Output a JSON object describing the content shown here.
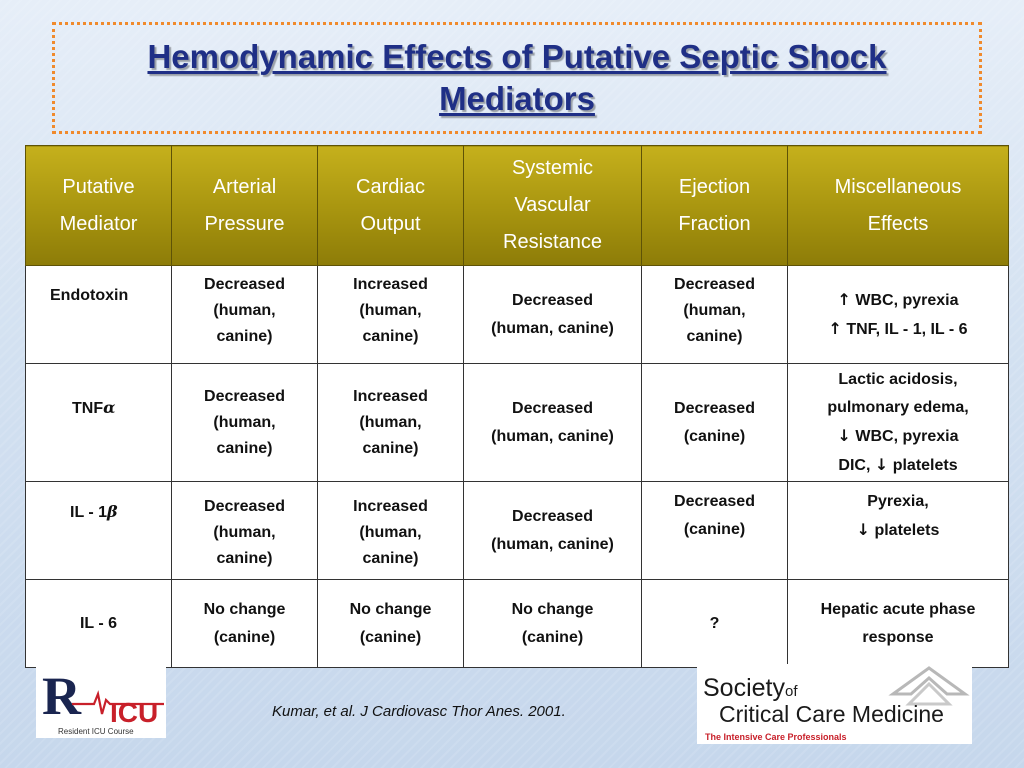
{
  "slide": {
    "title": "Hemodynamic Effects of Putative Septic Shock Mediators",
    "citation": "Kumar, et al. J Cardiovasc Thor Anes. 2001."
  },
  "table": {
    "headers": [
      [
        "Putative",
        "Mediator"
      ],
      [
        "Arterial",
        "Pressure"
      ],
      [
        "Cardiac",
        "Output"
      ],
      [
        "Systemic",
        "Vascular",
        "Resistance"
      ],
      [
        "Ejection",
        "Fraction"
      ],
      [
        "Miscellaneous",
        "Effects"
      ]
    ],
    "rows": [
      {
        "mediator": "Endotoxin",
        "arterial_pressure": [
          "Decreased",
          "(human,",
          "canine)"
        ],
        "cardiac_output": [
          "Increased",
          "(human,",
          "canine)"
        ],
        "svr": [
          "Decreased",
          "(human, canine)"
        ],
        "ejection_fraction": [
          "Decreased",
          "(human,",
          "canine)"
        ],
        "misc": [
          {
            "arrow": "↑",
            "text": " WBC, pyrexia"
          },
          {
            "arrow": "↑",
            "text": " TNF, IL - 1, IL - 6"
          }
        ]
      },
      {
        "mediator": "TNF",
        "mediator_greek": "α",
        "arterial_pressure": [
          "Decreased",
          "(human,",
          "canine)"
        ],
        "cardiac_output": [
          "Increased",
          "(human,",
          "canine)"
        ],
        "svr": [
          "Decreased",
          "(human, canine)"
        ],
        "ejection_fraction": [
          "Decreased",
          "(canine)"
        ],
        "misc": [
          {
            "arrow": "",
            "text": "Lactic acidosis,"
          },
          {
            "arrow": "",
            "text": "pulmonary edema,"
          },
          {
            "arrow": "↓",
            "text": " WBC, pyrexia"
          },
          {
            "arrow": "",
            "text": "DIC, ",
            "arrow_after": "↓",
            "text_after": " platelets"
          }
        ]
      },
      {
        "mediator": "IL - 1",
        "mediator_greek": "β",
        "arterial_pressure": [
          "Decreased",
          "(human,",
          "canine)"
        ],
        "cardiac_output": [
          "Increased",
          "(human,",
          "canine)"
        ],
        "svr": [
          "Decreased",
          "(human, canine)"
        ],
        "ejection_fraction": [
          "Decreased",
          "(canine)"
        ],
        "misc": [
          {
            "arrow": "",
            "text": "Pyrexia,"
          },
          {
            "arrow": "↓",
            "text": " platelets"
          }
        ]
      },
      {
        "mediator": "IL - 6",
        "arterial_pressure": [
          "No change",
          "(canine)"
        ],
        "cardiac_output": [
          "No change",
          "(canine)"
        ],
        "svr": [
          "No change",
          "(canine)"
        ],
        "ejection_fraction": [
          "?"
        ],
        "misc": [
          {
            "arrow": "",
            "text": "Hepatic acute phase"
          },
          {
            "arrow": "",
            "text": "response"
          }
        ]
      }
    ]
  },
  "logos": {
    "left": {
      "letters": "RICU",
      "caption": "Resident ICU Course"
    },
    "right": {
      "line1": "Society",
      "line1_small": "of",
      "line2": "Critical Care Medicine",
      "tagline": "The Intensive Care Professionals"
    }
  },
  "colors": {
    "title": "#1f2f86",
    "header_fill": "#a7940f",
    "title_border": "#f08a2c",
    "logo_red": "#c8202a",
    "logo_navy": "#1a2550"
  }
}
